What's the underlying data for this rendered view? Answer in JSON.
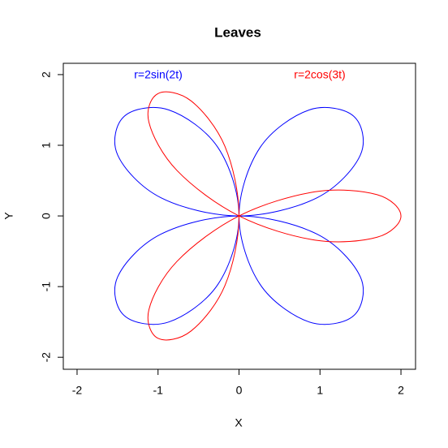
{
  "chart_data": {
    "type": "line",
    "title": "Leaves",
    "x_label": "X",
    "y_label": "Y",
    "xlim": [
      -2.17,
      2.18
    ],
    "ylim": [
      -2.17,
      2.16
    ],
    "xticks": [
      -2,
      -1,
      0,
      1,
      2
    ],
    "yticks": [
      -2,
      -1,
      0,
      1,
      2
    ],
    "series": [
      {
        "name": "r=2sin(2t)",
        "color": "#0000ff",
        "x": [
          0,
          0.966,
          1.5,
          1.414,
          0.866,
          0.259,
          0,
          0.259,
          0.866,
          1.414,
          1.5,
          0.966,
          0,
          -0.966,
          -1.5,
          -1.414,
          -0.866,
          -0.259,
          0,
          -0.259,
          -0.866,
          -1.414,
          -1.5,
          -0.966,
          0
        ],
        "y": [
          0,
          0.259,
          0.866,
          1.414,
          1.5,
          0.966,
          0,
          -0.966,
          -1.5,
          -1.414,
          -0.866,
          -0.259,
          0,
          -0.259,
          -0.866,
          -1.414,
          -1.5,
          -0.966,
          0,
          0.966,
          1.5,
          1.414,
          0.866,
          0.259,
          0
        ]
      },
      {
        "name": "r=2cos(3t)",
        "color": "#ff0000",
        "x": [
          2,
          1.706,
          0.94,
          0,
          -0.766,
          -1.113,
          -1,
          -0.592,
          -0.174,
          0,
          -0.174,
          -0.592,
          -1,
          -1.113,
          -0.766,
          0,
          0.94,
          1.706,
          2
        ],
        "y": [
          0,
          0.301,
          0.342,
          0,
          -0.643,
          -1.327,
          -1.732,
          -1.628,
          -0.985,
          0,
          0.985,
          1.628,
          1.732,
          1.327,
          0.643,
          0,
          -0.342,
          -0.301,
          0
        ]
      }
    ]
  }
}
